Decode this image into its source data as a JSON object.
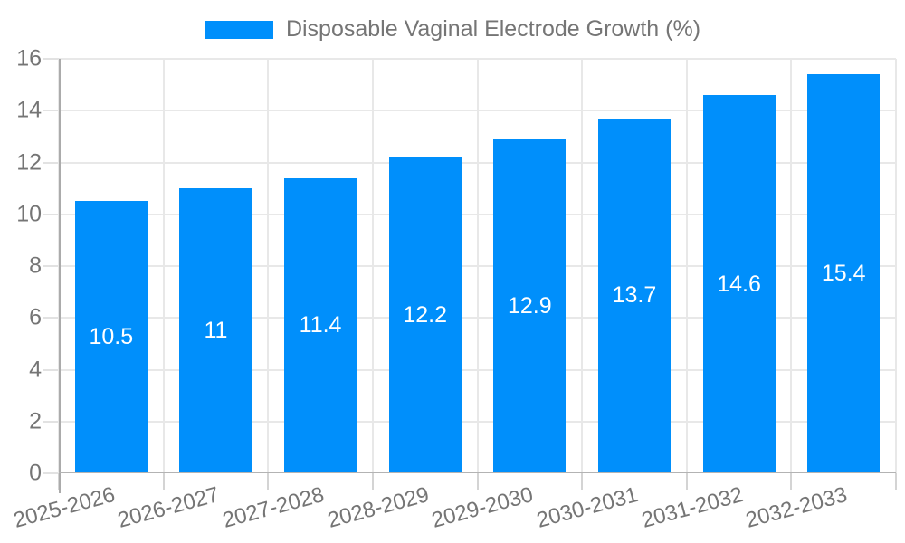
{
  "legend": {
    "label": "Disposable Vaginal Electrode Growth (%)",
    "swatch_color": "#008FFB"
  },
  "chart_data": {
    "type": "bar",
    "title": "Disposable Vaginal Electrode Growth (%)",
    "series_name": "Disposable Vaginal Electrode Growth (%)",
    "categories": [
      "2025-2026",
      "2026-2027",
      "2027-2028",
      "2028-2029",
      "2029-2030",
      "2030-2031",
      "2031-2032",
      "2032-2033"
    ],
    "values": [
      10.5,
      11,
      11.4,
      12.2,
      12.9,
      13.7,
      14.6,
      15.4
    ],
    "data_labels": [
      10.5,
      11,
      11.4,
      12.2,
      12.9,
      13.7,
      14.6,
      15.4
    ],
    "xlabel": "",
    "ylabel": "",
    "ylim": [
      0,
      16
    ],
    "ytick_step": 2,
    "ytick_labels": [
      "0",
      "2",
      "4",
      "6",
      "8",
      "10",
      "12",
      "14",
      "16"
    ],
    "grid": "on",
    "legend_position": "top",
    "bar_color": "#008FFB",
    "bar_label_color": "#ffffff",
    "axis_text_color": "#757575",
    "gridline_color": "#E8E8E8",
    "x_label_rotation_deg": -15
  }
}
